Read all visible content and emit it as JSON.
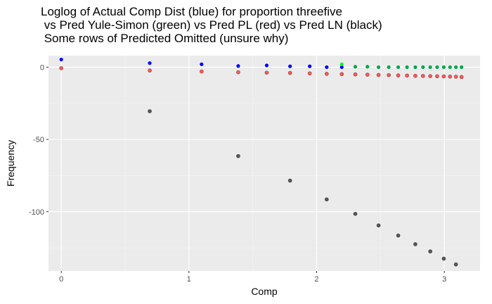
{
  "chart_data": {
    "type": "scatter",
    "title_lines": [
      "Loglog of Actual Comp Dist (blue) for proportion threefive",
      " vs Pred Yule-Simon (green) vs Pred PL (red) vs Pred LN (black)",
      " Some rows of Predicted Omitted (unsure why)"
    ],
    "xlabel": "Comp",
    "ylabel": "Frequency",
    "xlim": [
      -0.1,
      3.28
    ],
    "ylim": [
      -141,
      8
    ],
    "x_ticks": [
      0,
      1,
      2,
      3
    ],
    "x_tick_labels": [
      "0",
      "1",
      "2",
      "3"
    ],
    "y_ticks": [
      0,
      -50,
      -100
    ],
    "y_tick_labels": [
      "0",
      "-50",
      "-100"
    ],
    "grid": true,
    "legend": "none",
    "colors": {
      "panel_bg": "#ebebeb",
      "grid_major": "#ffffff",
      "grid_minor": "#f5f5f5",
      "actual": "#0000ff",
      "yule_simon": "#00a651",
      "yule_simon_highlight": "#00ff00",
      "power_law": "#ff5555",
      "log_normal": "#555555"
    },
    "series": [
      {
        "color_key": "actual",
        "points": [
          [
            0,
            5.3
          ],
          [
            0.693,
            2.8
          ],
          [
            1.099,
            2.0
          ],
          [
            1.386,
            0.8
          ],
          [
            1.609,
            1.2
          ],
          [
            1.792,
            0.6
          ],
          [
            1.946,
            0.6
          ],
          [
            2.079,
            0.0
          ],
          [
            2.197,
            0.0
          ]
        ]
      },
      {
        "color_key": "yule_simon",
        "points": [
          [
            2.197,
            2.0
          ],
          [
            2.303,
            0.3
          ],
          [
            2.398,
            0.3
          ],
          [
            2.485,
            0.0
          ],
          [
            2.565,
            0.0
          ],
          [
            2.639,
            0.0
          ],
          [
            2.708,
            0.0
          ],
          [
            2.773,
            0.0
          ],
          [
            2.833,
            0.0
          ],
          [
            2.89,
            0.0
          ],
          [
            2.944,
            0.0
          ],
          [
            2.996,
            0.0
          ],
          [
            3.045,
            0.0
          ],
          [
            3.091,
            0.0
          ],
          [
            3.135,
            0.0
          ]
        ]
      },
      {
        "color_key": "power_law",
        "points": [
          [
            0,
            -0.7
          ],
          [
            0.693,
            -2.3
          ],
          [
            1.099,
            -3.0
          ],
          [
            1.386,
            -3.5
          ],
          [
            1.609,
            -3.8
          ],
          [
            1.792,
            -4.0
          ],
          [
            1.946,
            -4.3
          ],
          [
            2.079,
            -4.6
          ],
          [
            2.197,
            -4.8
          ],
          [
            2.303,
            -5.0
          ],
          [
            2.398,
            -5.2
          ],
          [
            2.485,
            -5.4
          ],
          [
            2.565,
            -5.5
          ],
          [
            2.639,
            -5.7
          ],
          [
            2.708,
            -5.8
          ],
          [
            2.773,
            -6.0
          ],
          [
            2.833,
            -6.1
          ],
          [
            2.89,
            -6.2
          ],
          [
            2.944,
            -6.3
          ],
          [
            2.996,
            -6.4
          ],
          [
            3.045,
            -6.5
          ],
          [
            3.091,
            -6.6
          ],
          [
            3.135,
            -6.8
          ]
        ]
      },
      {
        "color_key": "log_normal",
        "points": [
          [
            0.693,
            -30.5
          ],
          [
            1.386,
            -61.5
          ],
          [
            1.792,
            -78.5
          ],
          [
            2.079,
            -91.5
          ],
          [
            2.303,
            -101.5
          ],
          [
            2.485,
            -109.5
          ],
          [
            2.639,
            -116.5
          ],
          [
            2.773,
            -122.5
          ],
          [
            2.89,
            -127.5
          ],
          [
            2.996,
            -132.5
          ],
          [
            3.091,
            -136.5
          ]
        ]
      }
    ]
  }
}
